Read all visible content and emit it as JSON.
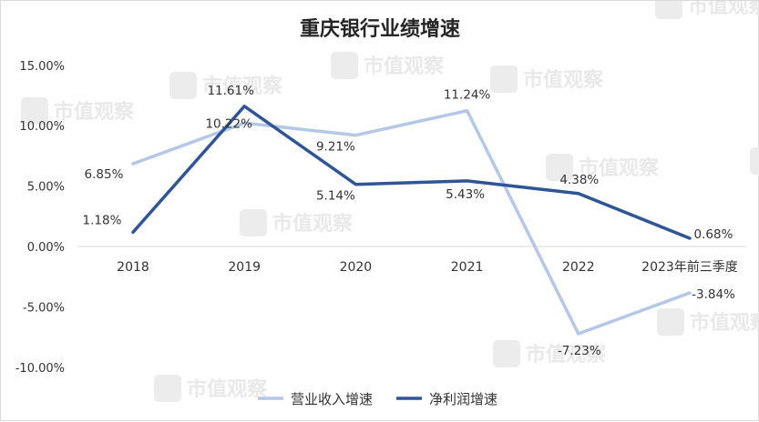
{
  "chart_data": {
    "type": "line",
    "title": "重庆银行业绩增速",
    "categories": [
      "2018",
      "2019",
      "2020",
      "2021",
      "2022",
      "2023年前三季度"
    ],
    "series": [
      {
        "name": "营业收入增速",
        "color": "#b4c7e7",
        "values": [
          6.85,
          10.22,
          9.21,
          11.24,
          -7.23,
          -3.84
        ],
        "labels": [
          "6.85%",
          "10.22%",
          "9.21%",
          "11.24%",
          "-7.23%",
          "-3.84%"
        ]
      },
      {
        "name": "净利润增速",
        "color": "#2f5597",
        "values": [
          1.18,
          11.61,
          5.14,
          5.43,
          4.38,
          0.68
        ],
        "labels": [
          "1.18%",
          "11.61%",
          "5.14%",
          "5.43%",
          "4.38%",
          "0.68%"
        ]
      }
    ],
    "ylim": [
      -10,
      15
    ],
    "yticks": [
      15,
      10,
      5,
      0,
      -5,
      -10
    ],
    "ytick_labels": [
      "15.00%",
      "10.00%",
      "5.00%",
      "0.00%",
      "-5.00%",
      "-10.00%"
    ],
    "grid": false,
    "legend": "bottom",
    "xlabel": "",
    "ylabel": ""
  },
  "watermark": {
    "text": "市值观察",
    "icon": "market-watch-logo-icon"
  }
}
